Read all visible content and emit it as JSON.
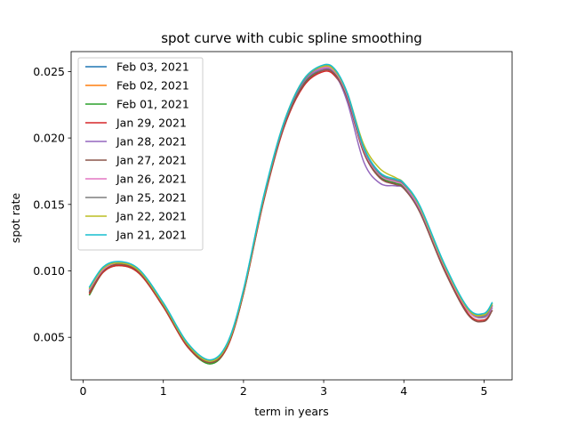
{
  "chart_data": {
    "type": "line",
    "title": "spot curve with cubic spline smoothing",
    "xlabel": "term in years",
    "ylabel": "spot rate",
    "xlim": [
      -0.15,
      5.35
    ],
    "ylim": [
      0.0018,
      0.0265
    ],
    "xticks": [
      0,
      1,
      2,
      3,
      4,
      5
    ],
    "xtick_labels": [
      "0",
      "1",
      "2",
      "3",
      "4",
      "5"
    ],
    "yticks": [
      0.005,
      0.01,
      0.015,
      0.02,
      0.025
    ],
    "ytick_labels": [
      "0.005",
      "0.010",
      "0.015",
      "0.020",
      "0.025"
    ],
    "grid": false,
    "legend_position": "top-left",
    "x": [
      0.08,
      0.25,
      0.45,
      0.7,
      1.0,
      1.3,
      1.58,
      1.8,
      2.0,
      2.25,
      2.5,
      2.75,
      3.0,
      3.15,
      3.3,
      3.5,
      3.7,
      3.9,
      4.0,
      4.2,
      4.5,
      4.8,
      5.0,
      5.1
    ],
    "series": [
      {
        "name": "Feb 03, 2021",
        "color": "#1f77b4",
        "values": [
          0.0085,
          0.0101,
          0.0106,
          0.01,
          0.0075,
          0.0045,
          0.0032,
          0.0045,
          0.0085,
          0.0155,
          0.021,
          0.0243,
          0.0254,
          0.025,
          0.0232,
          0.0192,
          0.0173,
          0.0168,
          0.0165,
          0.0148,
          0.0105,
          0.0072,
          0.0067,
          0.0075
        ]
      },
      {
        "name": "Feb 02, 2021",
        "color": "#ff7f0e",
        "values": [
          0.0084,
          0.01,
          0.0105,
          0.0099,
          0.0074,
          0.0044,
          0.0031,
          0.0044,
          0.0084,
          0.0154,
          0.0209,
          0.0242,
          0.0253,
          0.0249,
          0.0231,
          0.0191,
          0.0172,
          0.0167,
          0.0164,
          0.0147,
          0.0104,
          0.0071,
          0.0066,
          0.0074
        ]
      },
      {
        "name": "Feb 01, 2021",
        "color": "#2ca02c",
        "values": [
          0.0082,
          0.0099,
          0.0104,
          0.0098,
          0.0073,
          0.0043,
          0.003,
          0.0043,
          0.0083,
          0.0153,
          0.0208,
          0.0241,
          0.0252,
          0.0248,
          0.023,
          0.019,
          0.0171,
          0.0166,
          0.0163,
          0.0146,
          0.0103,
          0.007,
          0.0065,
          0.0073
        ]
      },
      {
        "name": "Jan 29, 2021",
        "color": "#d62728",
        "values": [
          0.0083,
          0.0099,
          0.0104,
          0.0098,
          0.0073,
          0.0043,
          0.0031,
          0.0043,
          0.0083,
          0.0152,
          0.0207,
          0.0239,
          0.025,
          0.0246,
          0.0229,
          0.0189,
          0.017,
          0.0165,
          0.0162,
          0.0145,
          0.0102,
          0.0068,
          0.0063,
          0.007
        ]
      },
      {
        "name": "Jan 28, 2021",
        "color": "#9467bd",
        "values": [
          0.0086,
          0.0101,
          0.0106,
          0.01,
          0.0075,
          0.0045,
          0.0032,
          0.0045,
          0.0085,
          0.0155,
          0.021,
          0.0242,
          0.0252,
          0.0247,
          0.0226,
          0.0182,
          0.0166,
          0.0164,
          0.0162,
          0.0146,
          0.0104,
          0.007,
          0.0065,
          0.0072
        ]
      },
      {
        "name": "Jan 27, 2021",
        "color": "#8c564b",
        "values": [
          0.0084,
          0.01,
          0.0105,
          0.0099,
          0.0074,
          0.0044,
          0.0031,
          0.0044,
          0.0084,
          0.0153,
          0.0208,
          0.024,
          0.0251,
          0.0247,
          0.0229,
          0.0189,
          0.017,
          0.0165,
          0.0162,
          0.0144,
          0.0101,
          0.0067,
          0.0062,
          0.007
        ]
      },
      {
        "name": "Jan 26, 2021",
        "color": "#e377c2",
        "values": [
          0.0086,
          0.0101,
          0.0106,
          0.01,
          0.0075,
          0.0045,
          0.0032,
          0.0045,
          0.0085,
          0.0155,
          0.021,
          0.0243,
          0.0253,
          0.0249,
          0.0231,
          0.0191,
          0.0172,
          0.0167,
          0.0164,
          0.0147,
          0.0104,
          0.007,
          0.0066,
          0.0073
        ]
      },
      {
        "name": "Jan 25, 2021",
        "color": "#7f7f7f",
        "values": [
          0.0087,
          0.0102,
          0.0106,
          0.01,
          0.0075,
          0.0045,
          0.0032,
          0.0045,
          0.0085,
          0.0155,
          0.021,
          0.0243,
          0.0254,
          0.025,
          0.0232,
          0.0192,
          0.0173,
          0.0168,
          0.0165,
          0.0148,
          0.0105,
          0.0071,
          0.0066,
          0.0074
        ]
      },
      {
        "name": "Jan 22, 2021",
        "color": "#bcbd22",
        "values": [
          0.0087,
          0.0102,
          0.0106,
          0.01,
          0.0075,
          0.0045,
          0.0032,
          0.0045,
          0.0085,
          0.0155,
          0.0211,
          0.0244,
          0.0254,
          0.025,
          0.0233,
          0.0195,
          0.0177,
          0.017,
          0.0166,
          0.0148,
          0.0105,
          0.0071,
          0.0067,
          0.0075
        ]
      },
      {
        "name": "Jan 21, 2021",
        "color": "#17becf",
        "values": [
          0.0088,
          0.0103,
          0.0107,
          0.0101,
          0.0076,
          0.0046,
          0.0033,
          0.0046,
          0.0086,
          0.0156,
          0.0211,
          0.0244,
          0.0255,
          0.0251,
          0.0233,
          0.0193,
          0.0174,
          0.0169,
          0.0166,
          0.0149,
          0.0106,
          0.0072,
          0.0068,
          0.0076
        ]
      }
    ]
  }
}
